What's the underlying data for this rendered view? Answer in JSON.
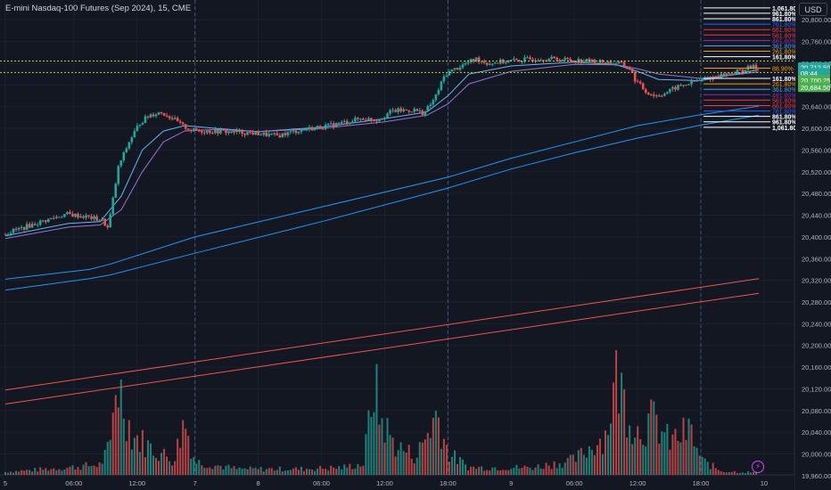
{
  "header": {
    "title": "E-mini Nasdaq-100 Futures (Sep 2024), 15, CME",
    "currency_button": "USD"
  },
  "colors": {
    "up": "#26a69a",
    "down": "#ef5350",
    "fib_white": "#ffffff",
    "fib_blue": "#2962ff",
    "fib_red": "#f23645",
    "fib_purple": "#9c27b0",
    "fib_orange": "#ff9800",
    "fib_lightblue": "#42a5f5",
    "ma_light": "#64b5f6",
    "ma_blue": "#2196f3",
    "ma_purple": "#9575cd",
    "ma_red": "#ef5350",
    "price_label": "#26a69a",
    "price_label_green": "#4caf50",
    "dotted_level": "#c0ca33"
  },
  "chart_data": {
    "type": "candlestick",
    "y_axis": {
      "min": 19950,
      "max": 20825,
      "ticks": [
        "20,800.00",
        "20,760.00",
        "20,720.00",
        "20,680.00",
        "20,640.00",
        "20,600.00",
        "20,560.00",
        "20,520.00",
        "20,480.00",
        "20,440.00",
        "20,400.00",
        "20,360.00",
        "20,320.00",
        "20,280.00",
        "20,240.00",
        "20,200.00",
        "20,160.00",
        "20,120.00",
        "20,080.00",
        "20,040.00",
        "20,000.00",
        "19,960.00"
      ]
    },
    "x_axis": {
      "labels": [
        {
          "t": 0,
          "label": "5"
        },
        {
          "t": 6.5,
          "label": "06:00"
        },
        {
          "t": 12.5,
          "label": "12:00"
        },
        {
          "t": 18,
          "label": "7"
        },
        {
          "t": 24,
          "label": "8"
        },
        {
          "t": 30,
          "label": "06:00"
        },
        {
          "t": 36,
          "label": "12:00"
        },
        {
          "t": 42,
          "label": "18:00"
        },
        {
          "t": 48,
          "label": "9"
        },
        {
          "t": 54,
          "label": "06:00"
        },
        {
          "t": 60,
          "label": "12:00"
        },
        {
          "t": 66,
          "label": "18:00"
        },
        {
          "t": 72,
          "label": "10"
        }
      ],
      "session_breaks": [
        18,
        42,
        66
      ],
      "t_max": 72.5
    },
    "price_path": [
      [
        0,
        20405
      ],
      [
        4,
        20430
      ],
      [
        6,
        20442
      ],
      [
        8,
        20437
      ],
      [
        9.5,
        20430
      ],
      [
        10,
        20415
      ],
      [
        11,
        20530
      ],
      [
        12,
        20575
      ],
      [
        13,
        20610
      ],
      [
        14,
        20625
      ],
      [
        15,
        20630
      ],
      [
        16,
        20620
      ],
      [
        17,
        20605
      ],
      [
        18,
        20596
      ],
      [
        21,
        20594
      ],
      [
        24,
        20591
      ],
      [
        26,
        20586
      ],
      [
        28,
        20596
      ],
      [
        31,
        20605
      ],
      [
        34,
        20618
      ],
      [
        35.5,
        20616
      ],
      [
        37,
        20632
      ],
      [
        39,
        20634
      ],
      [
        40,
        20628
      ],
      [
        41,
        20655
      ],
      [
        42,
        20700
      ],
      [
        44,
        20720
      ],
      [
        45,
        20728
      ],
      [
        46,
        20720
      ],
      [
        48,
        20724
      ],
      [
        51,
        20729
      ],
      [
        54,
        20726
      ],
      [
        57,
        20722
      ],
      [
        58.5,
        20720
      ],
      [
        59.5,
        20711
      ],
      [
        60,
        20690
      ],
      [
        61,
        20668
      ],
      [
        62,
        20660
      ],
      [
        63,
        20666
      ],
      [
        64,
        20676
      ],
      [
        66,
        20688
      ],
      [
        68,
        20697
      ],
      [
        70,
        20706
      ],
      [
        71,
        20713
      ],
      [
        71.5,
        20712.5
      ]
    ],
    "moving_averages": [
      {
        "key": "ma_light",
        "pts": [
          [
            0,
            20402
          ],
          [
            6,
            20425
          ],
          [
            9,
            20428
          ],
          [
            11,
            20475
          ],
          [
            13,
            20560
          ],
          [
            15,
            20595
          ],
          [
            17,
            20605
          ],
          [
            20,
            20600
          ],
          [
            24,
            20594
          ],
          [
            30,
            20602
          ],
          [
            36,
            20618
          ],
          [
            40,
            20630
          ],
          [
            42,
            20660
          ],
          [
            44,
            20700
          ],
          [
            48,
            20715
          ],
          [
            54,
            20722
          ],
          [
            58,
            20717
          ],
          [
            60,
            20705
          ],
          [
            62,
            20690
          ],
          [
            66,
            20688
          ],
          [
            71.5,
            20708
          ]
        ]
      },
      {
        "key": "ma_purple",
        "pts": [
          [
            0,
            20397
          ],
          [
            6,
            20418
          ],
          [
            9,
            20422
          ],
          [
            11,
            20450
          ],
          [
            13,
            20520
          ],
          [
            15,
            20575
          ],
          [
            17,
            20595
          ],
          [
            20,
            20598
          ],
          [
            24,
            20594
          ],
          [
            30,
            20600
          ],
          [
            36,
            20612
          ],
          [
            40,
            20624
          ],
          [
            42,
            20645
          ],
          [
            44,
            20682
          ],
          [
            48,
            20705
          ],
          [
            54,
            20718
          ],
          [
            58,
            20717
          ],
          [
            60,
            20710
          ],
          [
            62,
            20700
          ],
          [
            66,
            20692
          ],
          [
            71.5,
            20704
          ]
        ]
      },
      {
        "key": "ma_blue",
        "pts": [
          [
            0,
            20322
          ],
          [
            8,
            20340
          ],
          [
            10,
            20350
          ],
          [
            18,
            20400
          ],
          [
            30,
            20455
          ],
          [
            42,
            20510
          ],
          [
            48,
            20545
          ],
          [
            54,
            20575
          ],
          [
            60,
            20605
          ],
          [
            66,
            20625
          ],
          [
            71.5,
            20641
          ]
        ]
      },
      {
        "key": "ma_blue",
        "pts": [
          [
            0,
            20302
          ],
          [
            8,
            20323
          ],
          [
            10,
            20330
          ],
          [
            18,
            20370
          ],
          [
            30,
            20428
          ],
          [
            42,
            20490
          ],
          [
            48,
            20525
          ],
          [
            54,
            20555
          ],
          [
            60,
            20582
          ],
          [
            66,
            20606
          ],
          [
            71.5,
            20624
          ]
        ]
      },
      {
        "key": "ma_red",
        "pts": [
          [
            0,
            20118
          ],
          [
            71.5,
            20323
          ]
        ]
      },
      {
        "key": "ma_red",
        "pts": [
          [
            0,
            20092
          ],
          [
            71.5,
            20296
          ]
        ]
      }
    ],
    "fib_levels": [
      {
        "label": "1,061.80%",
        "price": 20822,
        "key": "fib_white",
        "bold": true
      },
      {
        "label": "961.80%",
        "price": 20812,
        "key": "fib_white",
        "bold": true
      },
      {
        "label": "861.80%",
        "price": 20802,
        "key": "fib_white",
        "bold": true
      },
      {
        "label": "761.80%",
        "price": 20792,
        "key": "fib_blue"
      },
      {
        "label": "661.80%",
        "price": 20782,
        "key": "fib_red"
      },
      {
        "label": "561.80%",
        "price": 20772,
        "key": "fib_red"
      },
      {
        "label": "461.80%",
        "price": 20762,
        "key": "fib_purple"
      },
      {
        "label": "361.80%",
        "price": 20752,
        "key": "fib_lightblue"
      },
      {
        "label": "261.80%",
        "price": 20742,
        "key": "fib_orange"
      },
      {
        "label": "161.80%",
        "price": 20732,
        "key": "fib_white",
        "bold": true
      },
      {
        "label": "88.90%",
        "price": 20711,
        "key": "fib_orange"
      },
      {
        "label": "161.80%",
        "price": 20692,
        "key": "fib_white",
        "bold": true
      },
      {
        "label": "261.80%",
        "price": 20682,
        "key": "fib_orange"
      },
      {
        "label": "361.80%",
        "price": 20672,
        "key": "fib_lightblue"
      },
      {
        "label": "461.80%",
        "price": 20662,
        "key": "fib_purple"
      },
      {
        "label": "561.80%",
        "price": 20652,
        "key": "fib_red"
      },
      {
        "label": "661.80%",
        "price": 20642,
        "key": "fib_red"
      },
      {
        "label": "761.80%",
        "price": 20632,
        "key": "fib_blue"
      },
      {
        "label": "861.80%",
        "price": 20622,
        "key": "fib_white",
        "bold": true
      },
      {
        "label": "961.80%",
        "price": 20612,
        "key": "fib_white",
        "bold": true
      },
      {
        "label": "1,061.80%",
        "price": 20602,
        "key": "fib_white",
        "bold": true
      }
    ],
    "dotted_levels": [
      20724,
      20703
    ],
    "price_labels": [
      {
        "text": "20,712.50",
        "price": 20712.5,
        "key": "price_label"
      },
      {
        "text": "08:44",
        "price": 20702,
        "key": "price_label"
      },
      {
        "text": "20,700.25",
        "price": 20689,
        "key": "price_label_green"
      },
      {
        "text": "20,684.50",
        "price": 20676,
        "key": "price_label_green"
      }
    ],
    "volume_peaks": [
      {
        "t": 0,
        "h": 4
      },
      {
        "t": 6,
        "h": 10
      },
      {
        "t": 9,
        "h": 14
      },
      {
        "t": 10,
        "h": 40
      },
      {
        "t": 10.5,
        "h": 135
      },
      {
        "t": 11,
        "h": 110
      },
      {
        "t": 12,
        "h": 55
      },
      {
        "t": 14,
        "h": 35
      },
      {
        "t": 16,
        "h": 20
      },
      {
        "t": 17,
        "h": 75
      },
      {
        "t": 18,
        "h": 18
      },
      {
        "t": 22,
        "h": 8
      },
      {
        "t": 28,
        "h": 8
      },
      {
        "t": 32,
        "h": 10
      },
      {
        "t": 34,
        "h": 15
      },
      {
        "t": 35,
        "h": 130
      },
      {
        "t": 35.5,
        "h": 80
      },
      {
        "t": 37,
        "h": 40
      },
      {
        "t": 39,
        "h": 25
      },
      {
        "t": 41,
        "h": 85
      },
      {
        "t": 42,
        "h": 30
      },
      {
        "t": 44,
        "h": 10
      },
      {
        "t": 50,
        "h": 10
      },
      {
        "t": 54,
        "h": 20
      },
      {
        "t": 57,
        "h": 55
      },
      {
        "t": 58,
        "h": 135
      },
      {
        "t": 59,
        "h": 90
      },
      {
        "t": 60,
        "h": 60
      },
      {
        "t": 61.5,
        "h": 75
      },
      {
        "t": 63,
        "h": 45
      },
      {
        "t": 65,
        "h": 60
      },
      {
        "t": 66,
        "h": 20
      },
      {
        "t": 68,
        "h": 5
      },
      {
        "t": 71.5,
        "h": 3
      }
    ]
  }
}
